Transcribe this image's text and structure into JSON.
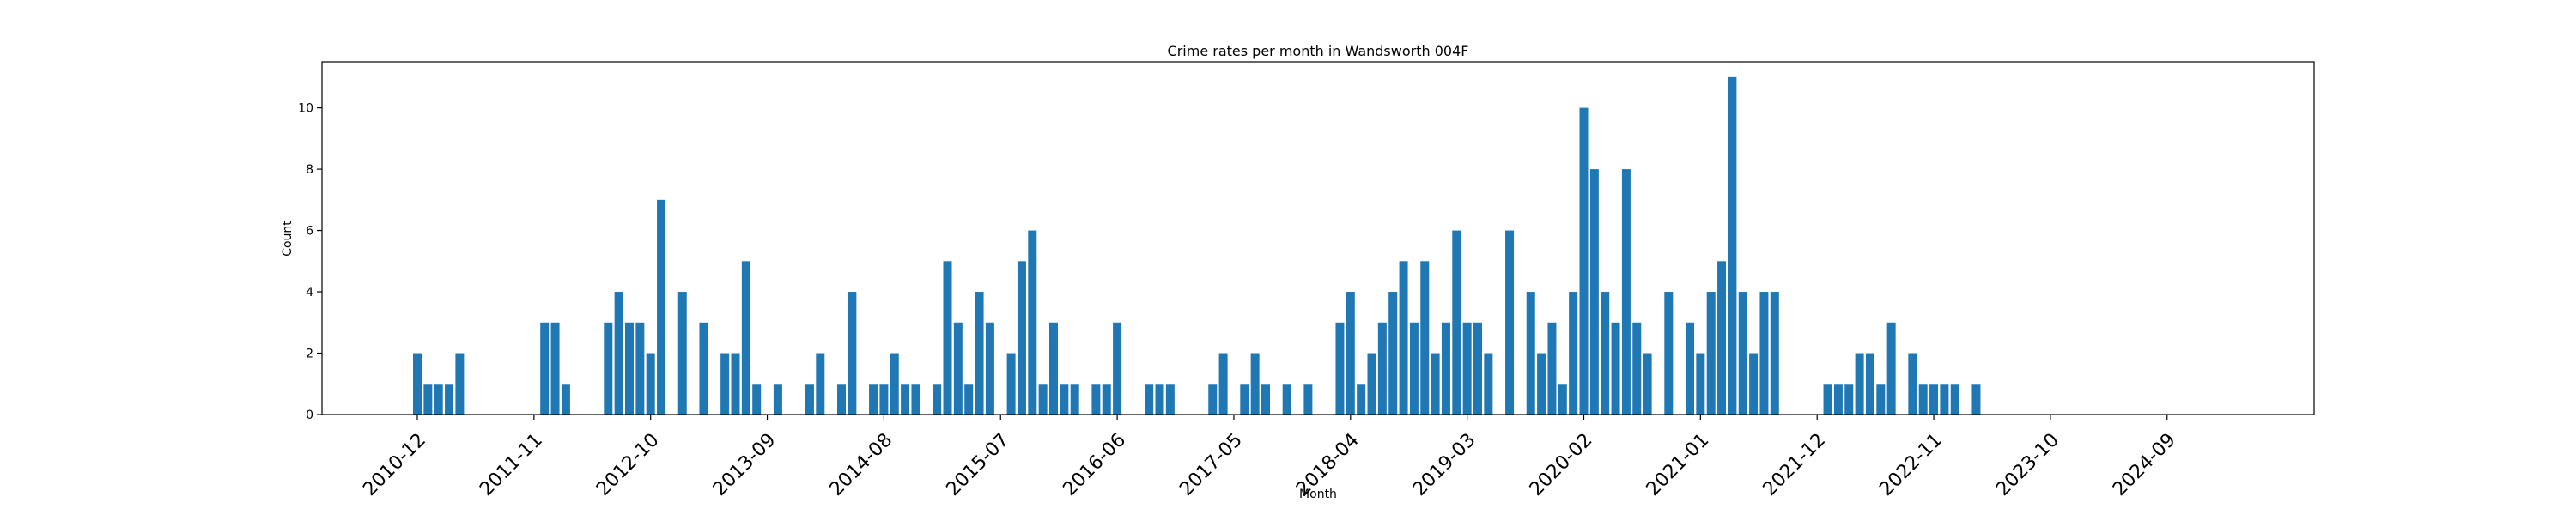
{
  "chart_data": {
    "type": "bar",
    "title": "Crime rates per month in Wandsworth 004F",
    "xlabel": "Month",
    "ylabel": "Count",
    "color": "#1f77b4",
    "x_tick_labels": [
      "2010-12",
      "2011-11",
      "2012-10",
      "2013-09",
      "2014-08",
      "2015-07",
      "2016-06",
      "2017-05",
      "2018-04",
      "2019-03",
      "2020-02",
      "2021-01",
      "2021-12",
      "2022-11",
      "2023-10",
      "2024-09"
    ],
    "y_ticks": [
      0,
      2,
      4,
      6,
      8,
      10
    ],
    "ylim": [
      0,
      11.5
    ],
    "grid": false,
    "categories": [
      "2010-12",
      "2011-01",
      "2011-02",
      "2011-03",
      "2011-04",
      "2011-12",
      "2012-01",
      "2012-02",
      "2012-06",
      "2012-07",
      "2012-08",
      "2012-09",
      "2012-10",
      "2012-11",
      "2013-01",
      "2013-03",
      "2013-05",
      "2013-06",
      "2013-07",
      "2013-08",
      "2013-10",
      "2014-01",
      "2014-02",
      "2014-04",
      "2014-05",
      "2014-07",
      "2014-08",
      "2014-09",
      "2014-10",
      "2014-11",
      "2015-01",
      "2015-02",
      "2015-03",
      "2015-04",
      "2015-05",
      "2015-06",
      "2015-08",
      "2015-09",
      "2015-10",
      "2015-11",
      "2015-12",
      "2016-01",
      "2016-02",
      "2016-04",
      "2016-05",
      "2016-06",
      "2016-09",
      "2016-10",
      "2016-11",
      "2017-03",
      "2017-04",
      "2017-06",
      "2017-07",
      "2017-08",
      "2017-10",
      "2017-12",
      "2018-03",
      "2018-04",
      "2018-05",
      "2018-06",
      "2018-07",
      "2018-08",
      "2018-09",
      "2018-10",
      "2018-11",
      "2018-12",
      "2019-01",
      "2019-02",
      "2019-03",
      "2019-04",
      "2019-05",
      "2019-07",
      "2019-09",
      "2019-10",
      "2019-11",
      "2019-12",
      "2020-01",
      "2020-02",
      "2020-03",
      "2020-04",
      "2020-05",
      "2020-06",
      "2020-07",
      "2020-08",
      "2020-10",
      "2020-12",
      "2021-01",
      "2021-02",
      "2021-03",
      "2021-04",
      "2021-05",
      "2021-06",
      "2021-07",
      "2021-08",
      "2022-01",
      "2022-02",
      "2022-03",
      "2022-04",
      "2022-05",
      "2022-06",
      "2022-07",
      "2022-09",
      "2022-10",
      "2022-11",
      "2022-12",
      "2023-01",
      "2023-03"
    ],
    "values": [
      2,
      1,
      1,
      1,
      2,
      3,
      3,
      1,
      3,
      4,
      3,
      3,
      2,
      7,
      4,
      3,
      2,
      2,
      5,
      1,
      1,
      1,
      2,
      1,
      4,
      1,
      1,
      2,
      1,
      1,
      1,
      5,
      3,
      1,
      4,
      3,
      2,
      5,
      6,
      1,
      3,
      1,
      1,
      1,
      1,
      3,
      1,
      1,
      1,
      1,
      2,
      1,
      2,
      1,
      1,
      1,
      3,
      4,
      1,
      2,
      3,
      4,
      5,
      3,
      5,
      2,
      3,
      6,
      3,
      3,
      2,
      6,
      4,
      2,
      3,
      1,
      4,
      10,
      8,
      4,
      3,
      8,
      3,
      2,
      4,
      3,
      2,
      4,
      5,
      11,
      4,
      2,
      4,
      4,
      1,
      1,
      1,
      2,
      2,
      1,
      3,
      2,
      1,
      1,
      1,
      1,
      1
    ]
  }
}
